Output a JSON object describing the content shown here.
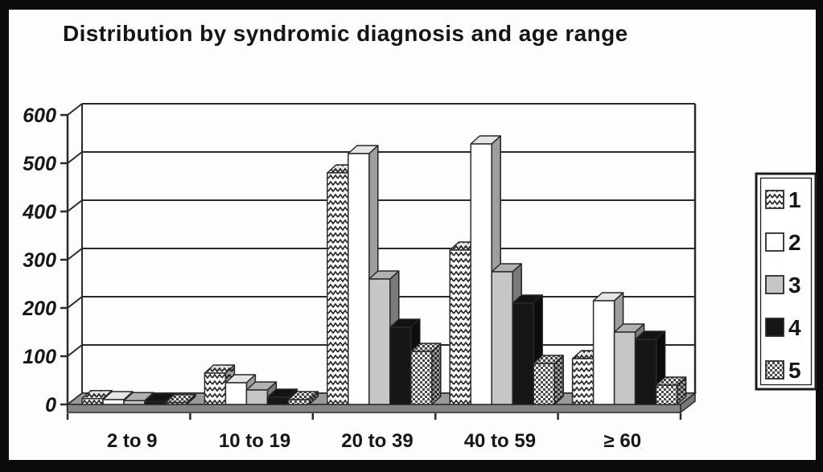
{
  "frame": {
    "background": "#fdfdfd",
    "border_color": "#0c0c0c"
  },
  "chart_data": {
    "type": "bar",
    "variant": "3d-clustered-column",
    "title": "Distribution by syndromic diagnosis and age range",
    "categories": [
      "2 to 9",
      "10 to 19",
      "20 to 39",
      "40 to 59",
      "≥ 60"
    ],
    "series": [
      {
        "name": "1",
        "fill": "zigzag",
        "values": [
          12,
          65,
          480,
          320,
          95
        ]
      },
      {
        "name": "2",
        "fill": "white",
        "values": [
          10,
          45,
          520,
          540,
          215
        ]
      },
      {
        "name": "3",
        "fill": "gray",
        "values": [
          8,
          30,
          260,
          275,
          150
        ]
      },
      {
        "name": "4",
        "fill": "black",
        "values": [
          6,
          15,
          160,
          210,
          135
        ]
      },
      {
        "name": "5",
        "fill": "checker",
        "values": [
          4,
          10,
          110,
          85,
          40
        ]
      }
    ],
    "yticks": [
      0,
      100,
      200,
      300,
      400,
      500,
      600
    ],
    "ylim": [
      0,
      600
    ],
    "grid": true,
    "legend_position": "right",
    "colors": {
      "white": "#ffffff",
      "gray": "#c6c6c6",
      "black": "#161616",
      "pattern_stroke": "#2b2b2b",
      "line": "#2a2a2a",
      "floor_top": "#9a9a9a",
      "floor_front": "#858585",
      "floor_side": "#777777",
      "text": "#161616"
    }
  }
}
